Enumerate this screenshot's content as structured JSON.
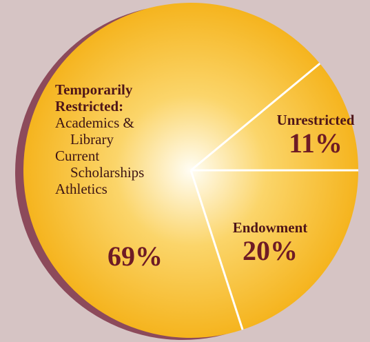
{
  "chart_data": {
    "type": "pie",
    "categories": [
      "Unrestricted",
      "Endowment",
      "Temporarily Restricted:"
    ],
    "values": [
      11,
      20,
      69
    ],
    "value_labels": [
      "11%",
      "20%",
      "69%"
    ],
    "details": [
      "Academics & Library",
      "Current Scholarships",
      "Athletics"
    ],
    "color": "#f5b41e"
  }
}
